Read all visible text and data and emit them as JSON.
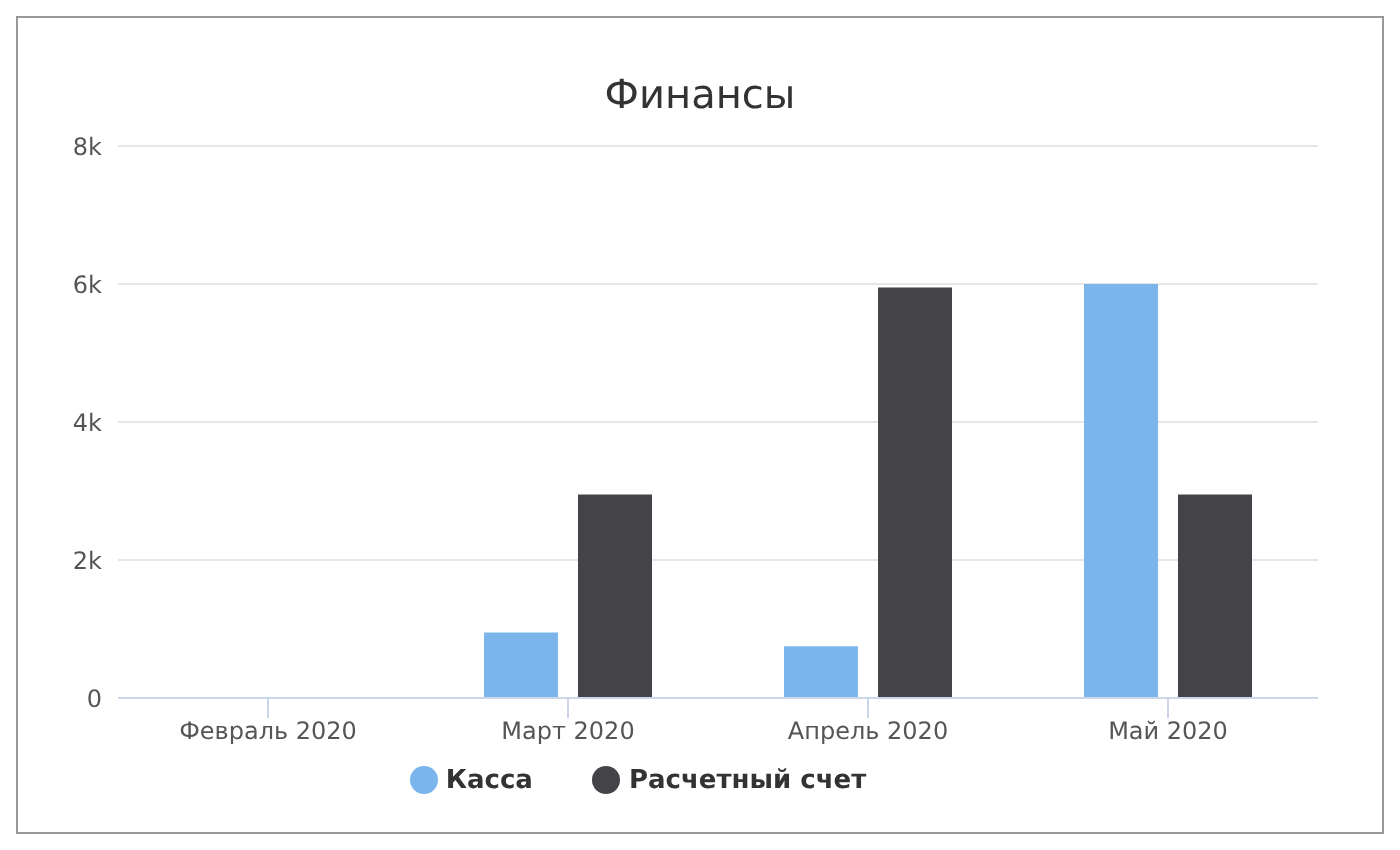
{
  "chart_data": {
    "type": "bar",
    "title": "Финансы",
    "categories": [
      "Февраль 2020",
      "Март 2020",
      "Апрель 2020",
      "Май 2020"
    ],
    "series": [
      {
        "name": "Касса",
        "color": "#7cb5ec",
        "values": [
          0,
          950,
          750,
          6000
        ]
      },
      {
        "name": "Расчетный счет",
        "color": "#434348",
        "values": [
          0,
          2950,
          5950,
          2950
        ]
      }
    ],
    "ylim": [
      0,
      8000
    ],
    "yticks": [
      {
        "value": 0,
        "label": "0"
      },
      {
        "value": 2000,
        "label": "2k"
      },
      {
        "value": 4000,
        "label": "4k"
      },
      {
        "value": 6000,
        "label": "6k"
      },
      {
        "value": 8000,
        "label": "8k"
      }
    ],
    "grid": "y",
    "legend": "bottom"
  }
}
